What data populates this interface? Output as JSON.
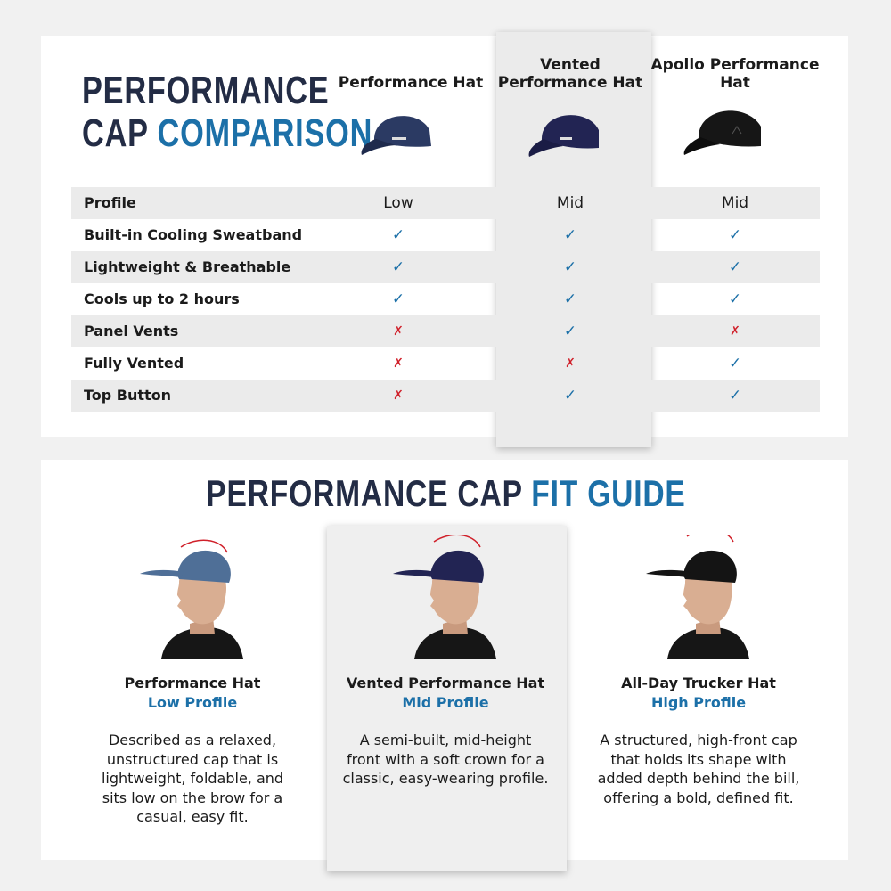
{
  "comparison": {
    "title": {
      "line1": "PERFORMANCE",
      "line2_dark": "CAP",
      "line2_accent": "COMPARISON"
    },
    "columns": [
      "Performance Hat",
      "Vented Performance Hat",
      "Apollo Performance Hat"
    ],
    "rows": [
      {
        "label": "Profile",
        "cells": [
          "Low",
          "Mid",
          "Mid"
        ]
      },
      {
        "label": "Built-in Cooling Sweatband",
        "cells": [
          "✓",
          "✓",
          "✓"
        ]
      },
      {
        "label": "Lightweight & Breathable",
        "cells": [
          "✓",
          "✓",
          "✓"
        ]
      },
      {
        "label": "Cools up to 2 hours",
        "cells": [
          "✓",
          "✓",
          "✓"
        ]
      },
      {
        "label": "Panel Vents",
        "cells": [
          "✗",
          "✓",
          "✗"
        ]
      },
      {
        "label": "Fully Vented",
        "cells": [
          "✗",
          "✗",
          "✓"
        ]
      },
      {
        "label": "Top Button",
        "cells": [
          "✗",
          "✓",
          "✓"
        ]
      }
    ]
  },
  "fit_guide": {
    "title": {
      "dark": "PERFORMANCE CAP",
      "accent": "FIT GUIDE"
    },
    "cards": [
      {
        "name": "Performance Hat",
        "profile": "Low Profile",
        "description": "Described as a relaxed, unstructured cap that is lightweight, foldable, and sits low on the brow for a casual, easy fit."
      },
      {
        "name": "Vented Performance Hat",
        "profile": "Mid Profile",
        "description": "A semi-built, mid-height front with a soft crown for a classic, easy-wearing profile."
      },
      {
        "name": "All-Day Trucker Hat",
        "profile": "High Profile",
        "description": "A structured, high-front cap that holds its shape with added depth behind the bill, offering a bold, defined fit."
      }
    ]
  }
}
